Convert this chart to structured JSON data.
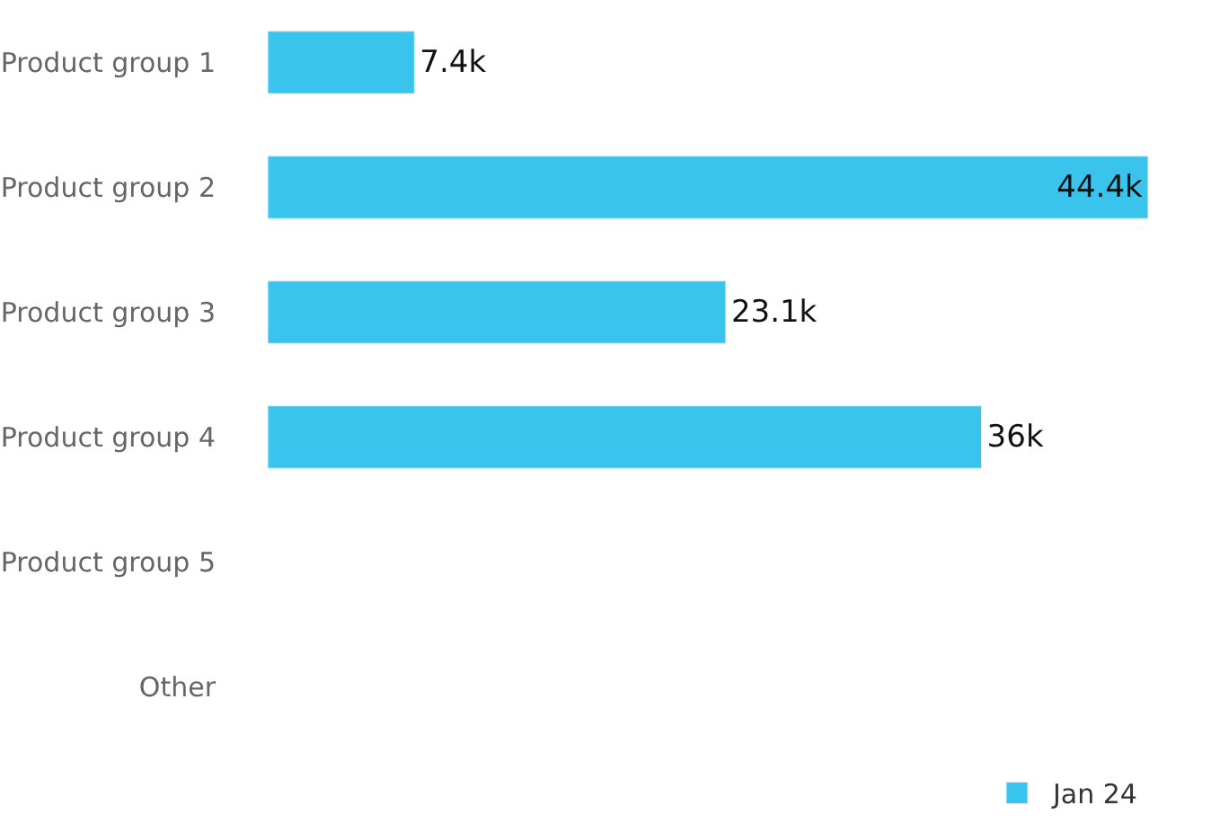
{
  "chart_data": {
    "type": "bar",
    "orientation": "horizontal",
    "categories": [
      "Product group 1",
      "Product group 2",
      "Product group 3",
      "Product group 4",
      "Product group 5",
      "Other"
    ],
    "series": [
      {
        "name": "Jan 24",
        "color": "#38c4ec",
        "values": [
          7400,
          44400,
          23100,
          36000,
          null,
          null
        ],
        "value_labels": [
          "7.4k",
          "44.4k",
          "23.1k",
          "36k",
          null,
          null
        ]
      }
    ],
    "tick_labels": "y",
    "legend": "bottom right"
  }
}
